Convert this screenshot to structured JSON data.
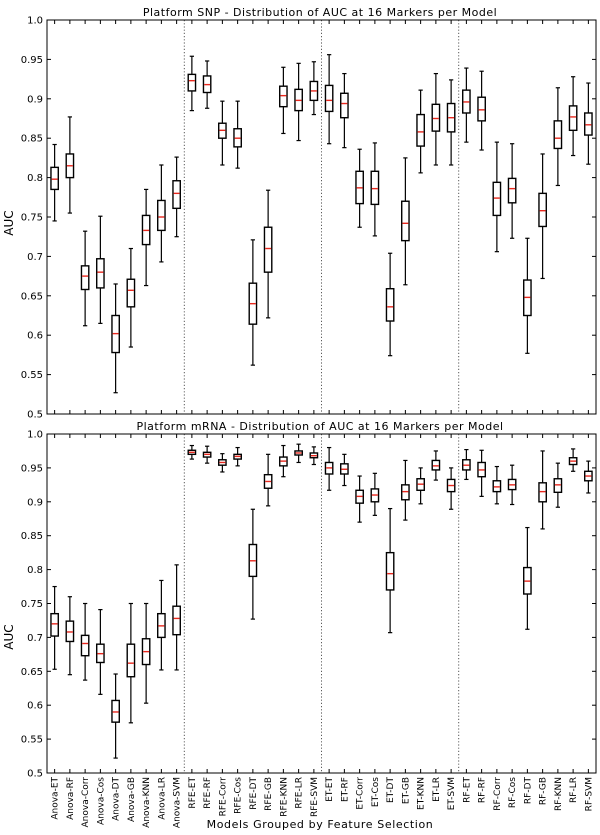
{
  "figure": {
    "xlabel": "Models Grouped by Feature Selection"
  },
  "chart_data": [
    {
      "type": "box",
      "title": "Platform SNP - Distribution of AUC at 16 Markers per Model",
      "ylabel": "AUC",
      "ylim": [
        0.5,
        1.0
      ],
      "yticks": [
        "0.5",
        "0.55",
        "0.6",
        "0.65",
        "0.7",
        "0.75",
        "0.8",
        "0.85",
        "0.9",
        "0.95",
        "1.0"
      ],
      "grid": false,
      "group_separators": "dotted vertical lines between groups",
      "categories": [
        "Anova-ET",
        "Anova-RF",
        "Anova-Corr",
        "Anova-Cos",
        "Anova-DT",
        "Anova-GB",
        "Anova-KNN",
        "Anova-LR",
        "Anova-SVM",
        "RFE-ET",
        "RFE-RF",
        "RFE-Corr",
        "RFE-Cos",
        "RFE-DT",
        "RFE-GB",
        "RFE-KNN",
        "RFE-LR",
        "RFE-SVM",
        "ET-ET",
        "ET-RF",
        "ET-Corr",
        "ET-Cos",
        "ET-DT",
        "ET-GB",
        "ET-KNN",
        "ET-LR",
        "ET-SVM",
        "RF-ET",
        "RF-RF",
        "RF-Corr",
        "RF-Cos",
        "RF-DT",
        "RF-GB",
        "RF-KNN",
        "RF-LR",
        "RF-SVM"
      ],
      "groups": [
        9,
        9,
        9,
        9
      ],
      "boxes": [
        {
          "min": 0.745,
          "q1": 0.785,
          "median": 0.798,
          "q3": 0.813,
          "max": 0.842
        },
        {
          "min": 0.755,
          "q1": 0.8,
          "median": 0.815,
          "q3": 0.83,
          "max": 0.877
        },
        {
          "min": 0.612,
          "q1": 0.658,
          "median": 0.675,
          "q3": 0.688,
          "max": 0.732
        },
        {
          "min": 0.615,
          "q1": 0.66,
          "median": 0.68,
          "q3": 0.697,
          "max": 0.751
        },
        {
          "min": 0.527,
          "q1": 0.578,
          "median": 0.602,
          "q3": 0.625,
          "max": 0.665
        },
        {
          "min": 0.585,
          "q1": 0.636,
          "median": 0.657,
          "q3": 0.671,
          "max": 0.71
        },
        {
          "min": 0.663,
          "q1": 0.715,
          "median": 0.733,
          "q3": 0.752,
          "max": 0.785
        },
        {
          "min": 0.693,
          "q1": 0.733,
          "median": 0.75,
          "q3": 0.771,
          "max": 0.816
        },
        {
          "min": 0.725,
          "q1": 0.761,
          "median": 0.78,
          "q3": 0.796,
          "max": 0.826
        },
        {
          "min": 0.885,
          "q1": 0.91,
          "median": 0.923,
          "q3": 0.931,
          "max": 0.954
        },
        {
          "min": 0.888,
          "q1": 0.908,
          "median": 0.918,
          "q3": 0.929,
          "max": 0.948
        },
        {
          "min": 0.816,
          "q1": 0.85,
          "median": 0.86,
          "q3": 0.869,
          "max": 0.897
        },
        {
          "min": 0.812,
          "q1": 0.839,
          "median": 0.85,
          "q3": 0.862,
          "max": 0.897
        },
        {
          "min": 0.562,
          "q1": 0.614,
          "median": 0.64,
          "q3": 0.666,
          "max": 0.721
        },
        {
          "min": 0.622,
          "q1": 0.68,
          "median": 0.71,
          "q3": 0.737,
          "max": 0.784
        },
        {
          "min": 0.856,
          "q1": 0.89,
          "median": 0.904,
          "q3": 0.916,
          "max": 0.94
        },
        {
          "min": 0.847,
          "q1": 0.885,
          "median": 0.898,
          "q3": 0.912,
          "max": 0.945
        },
        {
          "min": 0.88,
          "q1": 0.898,
          "median": 0.91,
          "q3": 0.922,
          "max": 0.947
        },
        {
          "min": 0.843,
          "q1": 0.884,
          "median": 0.898,
          "q3": 0.917,
          "max": 0.956
        },
        {
          "min": 0.838,
          "q1": 0.876,
          "median": 0.894,
          "q3": 0.907,
          "max": 0.932
        },
        {
          "min": 0.737,
          "q1": 0.767,
          "median": 0.787,
          "q3": 0.808,
          "max": 0.836
        },
        {
          "min": 0.726,
          "q1": 0.766,
          "median": 0.786,
          "q3": 0.808,
          "max": 0.844
        },
        {
          "min": 0.574,
          "q1": 0.618,
          "median": 0.636,
          "q3": 0.659,
          "max": 0.704
        },
        {
          "min": 0.664,
          "q1": 0.72,
          "median": 0.742,
          "q3": 0.77,
          "max": 0.825
        },
        {
          "min": 0.806,
          "q1": 0.84,
          "median": 0.858,
          "q3": 0.88,
          "max": 0.911
        },
        {
          "min": 0.816,
          "q1": 0.859,
          "median": 0.875,
          "q3": 0.893,
          "max": 0.932
        },
        {
          "min": 0.816,
          "q1": 0.858,
          "median": 0.876,
          "q3": 0.894,
          "max": 0.924
        },
        {
          "min": 0.845,
          "q1": 0.882,
          "median": 0.896,
          "q3": 0.911,
          "max": 0.939
        },
        {
          "min": 0.835,
          "q1": 0.872,
          "median": 0.886,
          "q3": 0.902,
          "max": 0.935
        },
        {
          "min": 0.706,
          "q1": 0.752,
          "median": 0.774,
          "q3": 0.794,
          "max": 0.845
        },
        {
          "min": 0.723,
          "q1": 0.768,
          "median": 0.786,
          "q3": 0.799,
          "max": 0.843
        },
        {
          "min": 0.577,
          "q1": 0.625,
          "median": 0.648,
          "q3": 0.67,
          "max": 0.723
        },
        {
          "min": 0.672,
          "q1": 0.738,
          "median": 0.758,
          "q3": 0.78,
          "max": 0.83
        },
        {
          "min": 0.79,
          "q1": 0.837,
          "median": 0.85,
          "q3": 0.872,
          "max": 0.914
        },
        {
          "min": 0.828,
          "q1": 0.86,
          "median": 0.877,
          "q3": 0.891,
          "max": 0.928
        },
        {
          "min": 0.817,
          "q1": 0.854,
          "median": 0.867,
          "q3": 0.882,
          "max": 0.92
        }
      ]
    },
    {
      "type": "box",
      "title": "Platform mRNA - Distribution of AUC at 16 Markers per Model",
      "ylabel": "AUC",
      "ylim": [
        0.5,
        1.0
      ],
      "yticks": [
        "0.5",
        "0.55",
        "0.6",
        "0.65",
        "0.7",
        "0.75",
        "0.8",
        "0.85",
        "0.9",
        "0.95",
        "1.0"
      ],
      "grid": false,
      "group_separators": "dotted vertical lines between groups",
      "categories": [
        "Anova-ET",
        "Anova-RF",
        "Anova-Corr",
        "Anova-Cos",
        "Anova-DT",
        "Anova-GB",
        "Anova-KNN",
        "Anova-LR",
        "Anova-SVM",
        "RFE-ET",
        "RFE-RF",
        "RFE-Corr",
        "RFE-Cos",
        "RFE-DT",
        "RFE-GB",
        "RFE-KNN",
        "RFE-LR",
        "RFE-SVM",
        "ET-ET",
        "ET-RF",
        "ET-Corr",
        "ET-Cos",
        "ET-DT",
        "ET-GB",
        "ET-KNN",
        "ET-LR",
        "ET-SVM",
        "RF-ET",
        "RF-RF",
        "RF-Corr",
        "RF-Cos",
        "RF-DT",
        "RF-GB",
        "RF-KNN",
        "RF-LR",
        "RF-SVM"
      ],
      "groups": [
        9,
        9,
        9,
        9
      ],
      "boxes": [
        {
          "min": 0.653,
          "q1": 0.702,
          "median": 0.72,
          "q3": 0.735,
          "max": 0.775
        },
        {
          "min": 0.645,
          "q1": 0.694,
          "median": 0.708,
          "q3": 0.724,
          "max": 0.76
        },
        {
          "min": 0.637,
          "q1": 0.673,
          "median": 0.691,
          "q3": 0.703,
          "max": 0.75
        },
        {
          "min": 0.616,
          "q1": 0.663,
          "median": 0.676,
          "q3": 0.69,
          "max": 0.741
        },
        {
          "min": 0.522,
          "q1": 0.575,
          "median": 0.59,
          "q3": 0.607,
          "max": 0.646
        },
        {
          "min": 0.574,
          "q1": 0.642,
          "median": 0.662,
          "q3": 0.69,
          "max": 0.75
        },
        {
          "min": 0.603,
          "q1": 0.66,
          "median": 0.679,
          "q3": 0.698,
          "max": 0.75
        },
        {
          "min": 0.652,
          "q1": 0.7,
          "median": 0.717,
          "q3": 0.735,
          "max": 0.784
        },
        {
          "min": 0.652,
          "q1": 0.704,
          "median": 0.728,
          "q3": 0.746,
          "max": 0.807
        },
        {
          "min": 0.963,
          "q1": 0.97,
          "median": 0.973,
          "q3": 0.976,
          "max": 0.983
        },
        {
          "min": 0.957,
          "q1": 0.966,
          "median": 0.97,
          "q3": 0.973,
          "max": 0.982
        },
        {
          "min": 0.944,
          "q1": 0.954,
          "median": 0.958,
          "q3": 0.962,
          "max": 0.971
        },
        {
          "min": 0.953,
          "q1": 0.963,
          "median": 0.967,
          "q3": 0.97,
          "max": 0.98
        },
        {
          "min": 0.727,
          "q1": 0.79,
          "median": 0.813,
          "q3": 0.837,
          "max": 0.889
        },
        {
          "min": 0.894,
          "q1": 0.92,
          "median": 0.93,
          "q3": 0.94,
          "max": 0.97
        },
        {
          "min": 0.937,
          "q1": 0.953,
          "median": 0.96,
          "q3": 0.966,
          "max": 0.983
        },
        {
          "min": 0.958,
          "q1": 0.969,
          "median": 0.972,
          "q3": 0.975,
          "max": 0.985
        },
        {
          "min": 0.955,
          "q1": 0.965,
          "median": 0.968,
          "q3": 0.972,
          "max": 0.981
        },
        {
          "min": 0.917,
          "q1": 0.941,
          "median": 0.95,
          "q3": 0.958,
          "max": 0.98
        },
        {
          "min": 0.924,
          "q1": 0.941,
          "median": 0.948,
          "q3": 0.956,
          "max": 0.97
        },
        {
          "min": 0.87,
          "q1": 0.898,
          "median": 0.908,
          "q3": 0.917,
          "max": 0.938
        },
        {
          "min": 0.88,
          "q1": 0.9,
          "median": 0.91,
          "q3": 0.919,
          "max": 0.942
        },
        {
          "min": 0.707,
          "q1": 0.77,
          "median": 0.794,
          "q3": 0.825,
          "max": 0.89
        },
        {
          "min": 0.873,
          "q1": 0.903,
          "median": 0.915,
          "q3": 0.925,
          "max": 0.961
        },
        {
          "min": 0.897,
          "q1": 0.917,
          "median": 0.926,
          "q3": 0.934,
          "max": 0.95
        },
        {
          "min": 0.932,
          "q1": 0.947,
          "median": 0.953,
          "q3": 0.961,
          "max": 0.975
        },
        {
          "min": 0.889,
          "q1": 0.915,
          "median": 0.924,
          "q3": 0.933,
          "max": 0.95
        },
        {
          "min": 0.933,
          "q1": 0.947,
          "median": 0.954,
          "q3": 0.962,
          "max": 0.977
        },
        {
          "min": 0.908,
          "q1": 0.937,
          "median": 0.947,
          "q3": 0.958,
          "max": 0.976
        },
        {
          "min": 0.897,
          "q1": 0.915,
          "median": 0.922,
          "q3": 0.931,
          "max": 0.952
        },
        {
          "min": 0.896,
          "q1": 0.918,
          "median": 0.925,
          "q3": 0.933,
          "max": 0.954
        },
        {
          "min": 0.712,
          "q1": 0.764,
          "median": 0.783,
          "q3": 0.803,
          "max": 0.862
        },
        {
          "min": 0.86,
          "q1": 0.9,
          "median": 0.915,
          "q3": 0.928,
          "max": 0.975
        },
        {
          "min": 0.892,
          "q1": 0.914,
          "median": 0.925,
          "q3": 0.934,
          "max": 0.957
        },
        {
          "min": 0.945,
          "q1": 0.955,
          "median": 0.96,
          "q3": 0.965,
          "max": 0.978
        },
        {
          "min": 0.913,
          "q1": 0.931,
          "median": 0.938,
          "q3": 0.945,
          "max": 0.96
        }
      ]
    }
  ]
}
